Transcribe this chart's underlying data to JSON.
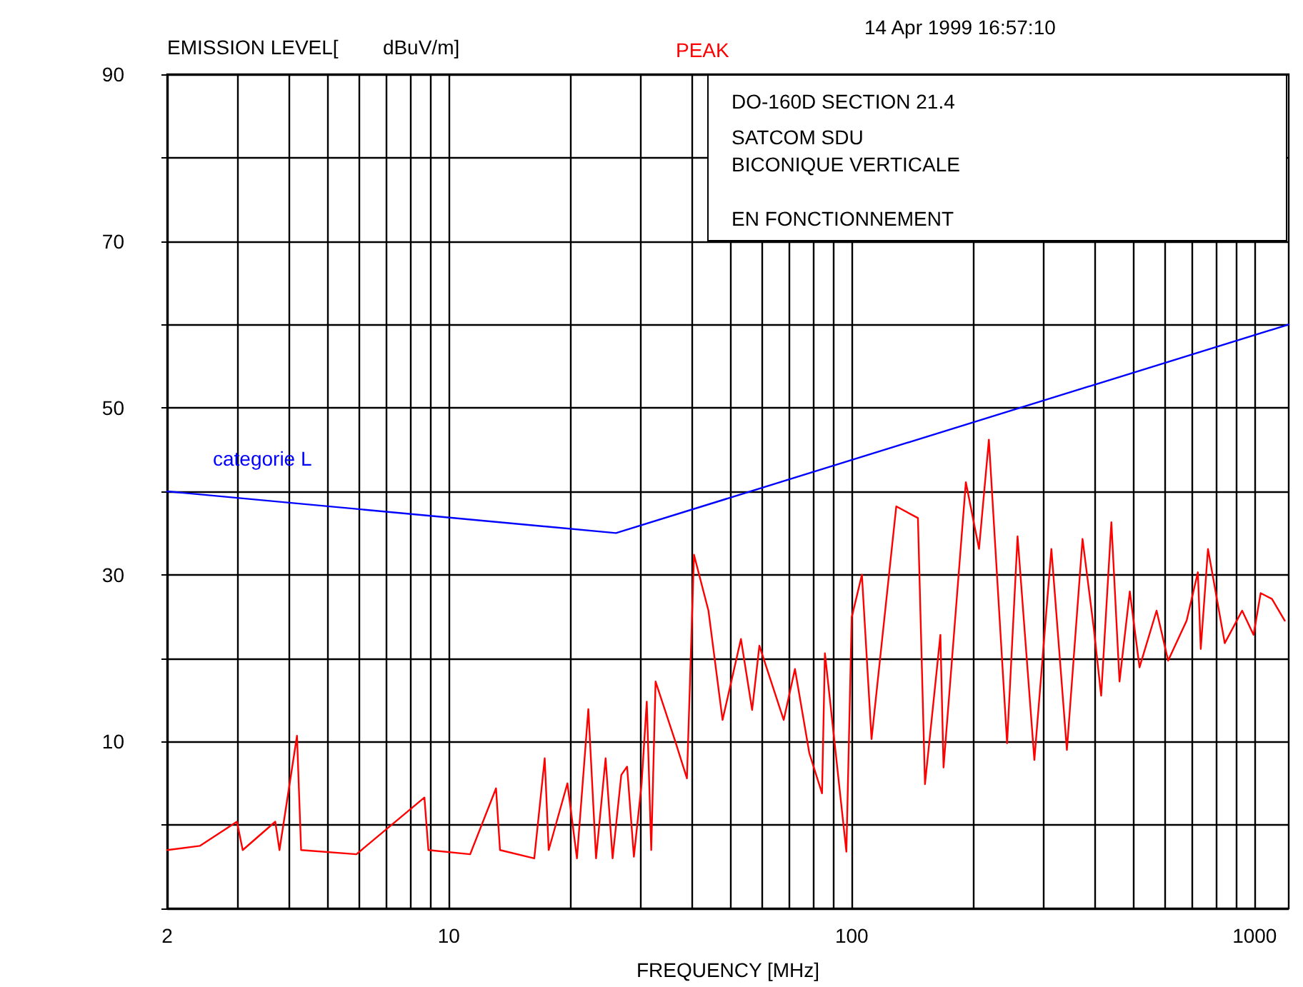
{
  "chart_data": {
    "type": "line",
    "ylabel": "EMISSION LEVEL[        dBuV/m]",
    "xlabel": "FREQUENCY [MHz]",
    "annotations": [
      "PEAK",
      "14 Apr 1999  16:57:10",
      "DO-160D SECTION 21.4",
      "SATCOM SDU",
      "BICONIQUE VERTICALE",
      "EN FONCTIONNEMENT"
    ],
    "log": "x",
    "grid": true,
    "marker": "none",
    "line_style": "solid",
    "xlim": [
      2,
      1215
    ],
    "xticks": [
      2,
      {
        "value": 3,
        "label": null
      },
      {
        "value": 4,
        "label": null
      },
      {
        "value": 5,
        "label": null
      },
      {
        "value": 6,
        "label": null
      },
      {
        "value": 7,
        "label": null
      },
      {
        "value": 8,
        "label": null
      },
      {
        "value": 9,
        "label": null
      },
      10,
      {
        "value": 20,
        "label": null
      },
      {
        "value": 30,
        "label": null
      },
      {
        "value": 40,
        "label": null
      },
      {
        "value": 50,
        "label": null
      },
      {
        "value": 60,
        "label": null
      },
      {
        "value": 70,
        "label": null
      },
      {
        "value": 80,
        "label": null
      },
      {
        "value": 90,
        "label": null
      },
      100,
      {
        "value": 200,
        "label": null
      },
      {
        "value": 300,
        "label": null
      },
      {
        "value": 400,
        "label": null
      },
      {
        "value": 500,
        "label": null
      },
      {
        "value": 600,
        "label": null
      },
      {
        "value": 700,
        "label": null
      },
      {
        "value": 800,
        "label": null
      },
      {
        "value": 900,
        "label": null
      },
      1000
    ],
    "ylim": [
      -10,
      90
    ],
    "yticks": [
      {
        "value": -10,
        "label": null
      },
      {
        "value": 0,
        "label": null
      },
      10,
      {
        "value": 20,
        "label": null
      },
      30,
      {
        "value": 40,
        "label": null
      },
      50,
      {
        "value": 60,
        "label": null
      },
      70,
      {
        "value": 80,
        "label": null
      },
      90
    ],
    "series": [
      {
        "color": "#ff0000",
        "x": [
          2,
          2.41,
          2.98,
          3.08,
          3.71,
          3.8,
          4.2,
          4.3,
          5.9,
          8.7,
          8.9,
          11.3,
          13.1,
          13.4,
          16.3,
          17.3,
          17.7,
          19.7,
          20.8,
          22.2,
          23.2,
          24.5,
          25.5,
          26.8,
          27.7,
          28.8,
          30.1,
          31,
          31.8,
          32.6,
          36.5,
          39,
          40.6,
          44.1,
          47.8,
          53.1,
          56.6,
          59,
          67.8,
          72.3,
          78.5,
          84.4,
          85.8,
          97,
          100,
          106,
          112,
          129,
          146,
          152,
          166,
          169,
          192,
          207,
          219,
          243,
          258,
          284,
          313,
          342,
          374,
          399,
          416,
          441,
          462,
          490,
          518,
          571,
          610,
          678,
          723,
          735,
          766,
          843,
          931,
          994,
          1035,
          1104,
          1188
        ],
        "values": [
          -3,
          -2.5,
          0.4,
          -3,
          0.4,
          -3,
          10.7,
          -3,
          -3.5,
          3.3,
          -3,
          -3.5,
          4.4,
          -3,
          -4,
          8,
          -3,
          5,
          -4,
          13.9,
          -4,
          8,
          -4,
          6,
          7,
          -3.8,
          5,
          14.8,
          -3,
          17.2,
          10,
          5.6,
          32.4,
          25.7,
          12.6,
          22.3,
          13.8,
          21.5,
          12.6,
          18.7,
          8.6,
          3.8,
          20.6,
          -3.2,
          24.9,
          30,
          10.3,
          38.2,
          36.8,
          4.9,
          22.8,
          6.9,
          41.1,
          33.1,
          46.2,
          9.8,
          34.6,
          7.8,
          33.1,
          9,
          34.3,
          23.5,
          15.5,
          36.3,
          17.2,
          28,
          18.9,
          25.7,
          19.7,
          24.5,
          30.3,
          21.1,
          33.1,
          21.8,
          25.7,
          22.8,
          27.8,
          27.1,
          24.5
        ]
      },
      {
        "name": "categorie L",
        "color": "#0000ff",
        "x": [
          2,
          26,
          1215
        ],
        "values": [
          40,
          35,
          60
        ]
      }
    ]
  }
}
